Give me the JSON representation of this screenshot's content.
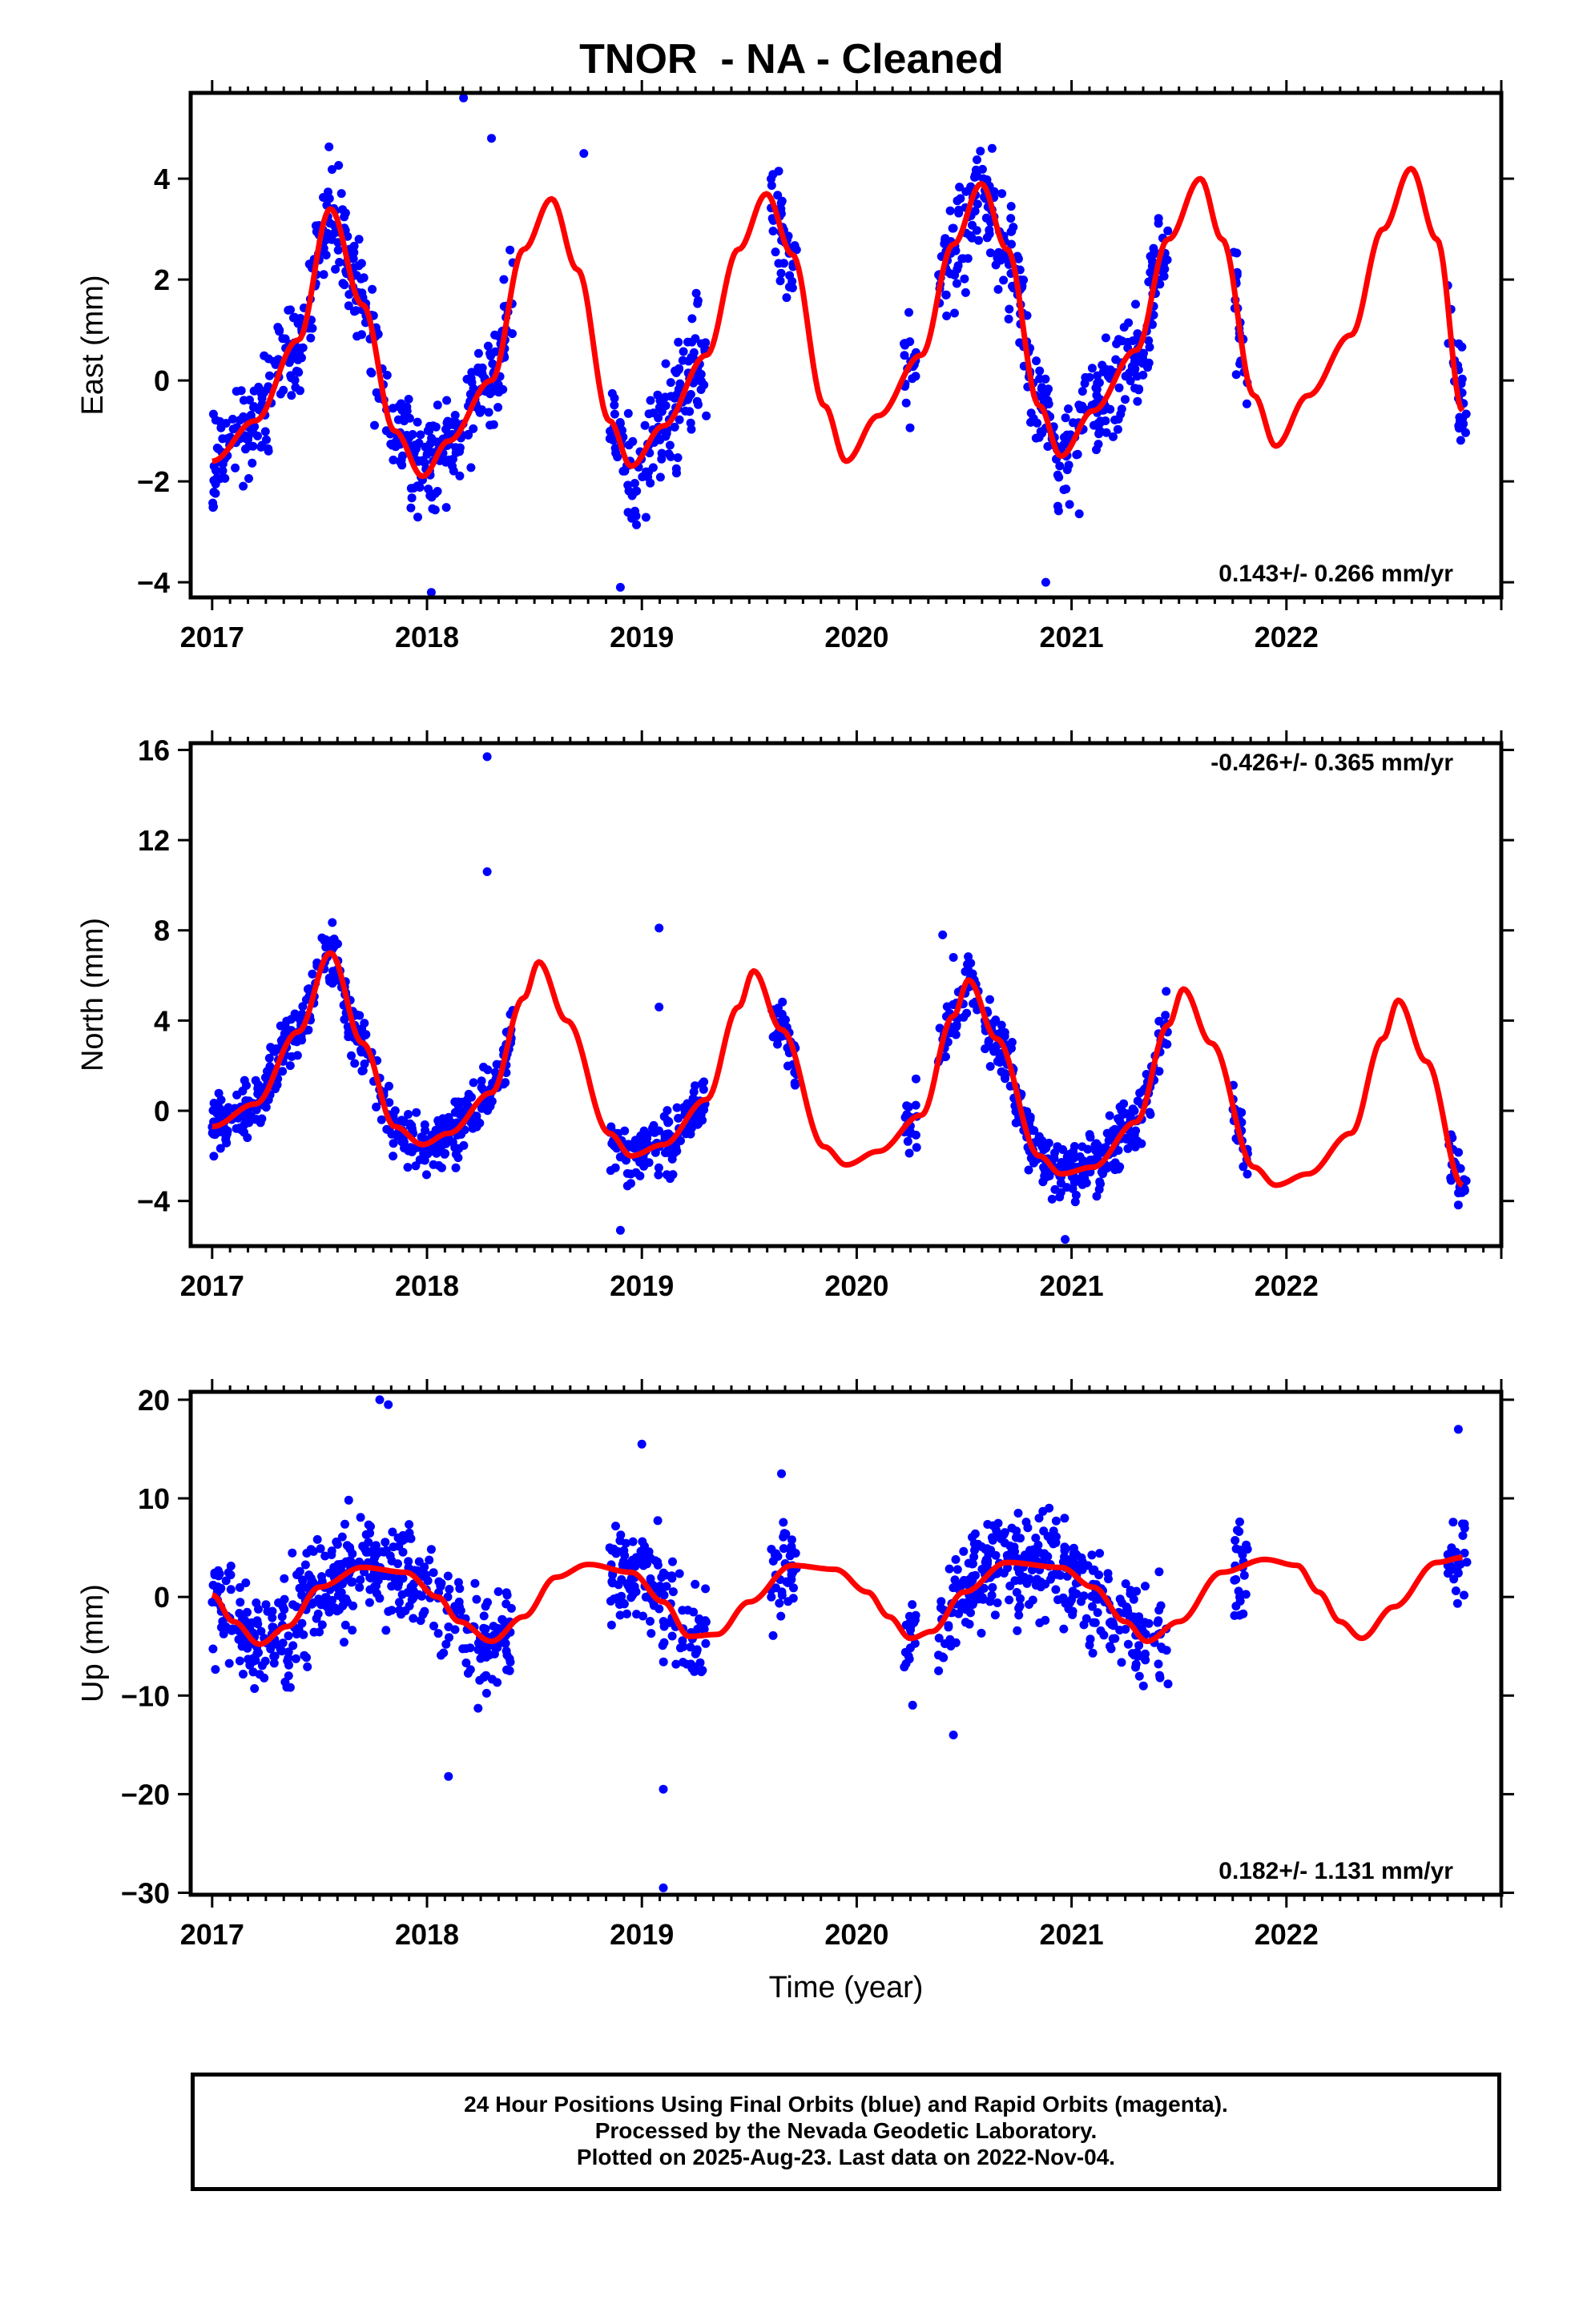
{
  "title": "TNOR  - NA - Cleaned",
  "colors": {
    "points": "#0000ff",
    "model": "#ff0000",
    "frame": "#000000"
  },
  "x_axis_label": "Time (year)",
  "footer": {
    "line1": "24 Hour Positions Using Final Orbits (blue) and Rapid Orbits (magenta).",
    "line2": "Processed by the Nevada Geodetic Laboratory.",
    "line3": "Plotted on 2025-Aug-23. Last data on 2022-Nov-04."
  },
  "chart_data": [
    {
      "type": "scatter",
      "ylabel": "East (mm)",
      "rate_text": "0.143+/- 0.266 mm/yr",
      "rate_position": "bottom-right",
      "xlim": [
        2016.9,
        2023.0
      ],
      "ylim": [
        -4.3,
        5.7
      ],
      "xticks": [
        2017,
        2018,
        2019,
        2020,
        2021,
        2022
      ],
      "yticks": [
        -4,
        -2,
        0,
        2,
        4
      ],
      "data_segments": [
        [
          2017.0,
          2018.4
        ],
        [
          2018.85,
          2019.3
        ],
        [
          2019.6,
          2019.72
        ],
        [
          2020.22,
          2020.28
        ],
        [
          2020.38,
          2021.45
        ],
        [
          2021.75,
          2021.82
        ],
        [
          2022.75,
          2022.84
        ]
      ],
      "model": {
        "x": [
          2017.0,
          2017.2,
          2017.4,
          2017.55,
          2017.7,
          2017.85,
          2017.98,
          2018.1,
          2018.3,
          2018.45,
          2018.58,
          2018.7,
          2018.85,
          2018.95,
          2019.1,
          2019.3,
          2019.45,
          2019.58,
          2019.7,
          2019.85,
          2019.95,
          2020.1,
          2020.3,
          2020.45,
          2020.58,
          2020.7,
          2020.85,
          2020.95,
          2021.1,
          2021.3,
          2021.45,
          2021.6,
          2021.7,
          2021.85,
          2021.95,
          2022.1,
          2022.3,
          2022.45,
          2022.58,
          2022.7,
          2022.82
        ],
        "y": [
          -1.6,
          -0.8,
          0.8,
          3.4,
          1.5,
          -1.0,
          -1.9,
          -1.2,
          0.0,
          2.6,
          3.6,
          2.2,
          -0.8,
          -1.7,
          -0.9,
          0.5,
          2.6,
          3.7,
          2.5,
          -0.5,
          -1.6,
          -0.7,
          0.5,
          2.7,
          3.9,
          2.6,
          -0.5,
          -1.5,
          -0.6,
          0.6,
          2.8,
          4.0,
          2.8,
          -0.3,
          -1.3,
          -0.3,
          0.9,
          3.0,
          4.2,
          2.8,
          -0.6
        ]
      },
      "outliers": [
        [
          2018.17,
          5.6
        ],
        [
          2018.3,
          4.8
        ],
        [
          2018.73,
          4.5
        ],
        [
          2020.63,
          4.6
        ],
        [
          2020.88,
          -4.0
        ],
        [
          2018.02,
          -4.2
        ],
        [
          2018.9,
          -4.1
        ]
      ]
    },
    {
      "type": "scatter",
      "ylabel": "North (mm)",
      "rate_text": "-0.426+/- 0.365 mm/yr",
      "rate_position": "top-right",
      "xlim": [
        2016.9,
        2023.0
      ],
      "ylim": [
        -6.0,
        16.3
      ],
      "xticks": [
        2017,
        2018,
        2019,
        2020,
        2021,
        2022
      ],
      "yticks": [
        -4,
        0,
        4,
        8,
        12,
        16
      ],
      "data_segments": [
        [
          2017.0,
          2018.4
        ],
        [
          2018.85,
          2019.3
        ],
        [
          2019.6,
          2019.72
        ],
        [
          2020.22,
          2020.28
        ],
        [
          2020.38,
          2021.45
        ],
        [
          2021.75,
          2021.82
        ],
        [
          2022.75,
          2022.84
        ]
      ],
      "model": {
        "x": [
          2017.0,
          2017.2,
          2017.4,
          2017.55,
          2017.7,
          2017.85,
          2017.98,
          2018.1,
          2018.3,
          2018.45,
          2018.52,
          2018.65,
          2018.85,
          2018.95,
          2019.1,
          2019.3,
          2019.45,
          2019.52,
          2019.65,
          2019.85,
          2019.95,
          2020.1,
          2020.3,
          2020.45,
          2020.52,
          2020.65,
          2020.85,
          2020.95,
          2021.1,
          2021.3,
          2021.45,
          2021.52,
          2021.65,
          2021.85,
          2021.95,
          2022.1,
          2022.3,
          2022.45,
          2022.52,
          2022.65,
          2022.82
        ],
        "y": [
          -0.7,
          0.3,
          3.5,
          7.0,
          3.0,
          -0.7,
          -1.5,
          -1.0,
          0.8,
          5.0,
          6.6,
          4.0,
          -1.0,
          -2.0,
          -1.5,
          0.5,
          4.6,
          6.2,
          3.6,
          -1.6,
          -2.4,
          -1.8,
          -0.2,
          4.2,
          5.8,
          3.2,
          -2.0,
          -2.8,
          -2.5,
          -0.5,
          3.8,
          5.4,
          3.0,
          -2.5,
          -3.3,
          -2.8,
          -1.0,
          3.2,
          4.9,
          2.2,
          -3.3
        ]
      },
      "outliers": [
        [
          2018.28,
          15.7
        ],
        [
          2018.28,
          10.6
        ],
        [
          2019.08,
          8.1
        ],
        [
          2019.08,
          4.6
        ],
        [
          2020.4,
          7.8
        ],
        [
          2020.45,
          6.8
        ],
        [
          2018.9,
          -5.3
        ],
        [
          2020.97,
          -5.7
        ]
      ]
    },
    {
      "type": "scatter",
      "ylabel": "Up (mm)",
      "rate_text": "0.182+/- 1.131 mm/yr",
      "rate_position": "bottom-right",
      "xlim": [
        2016.9,
        2023.0
      ],
      "ylim": [
        -30.2,
        20.8
      ],
      "xticks": [
        2017,
        2018,
        2019,
        2020,
        2021,
        2022
      ],
      "yticks": [
        -30,
        -20,
        -10,
        0,
        10,
        20
      ],
      "data_segments": [
        [
          2017.0,
          2018.4
        ],
        [
          2018.85,
          2019.3
        ],
        [
          2019.6,
          2019.72
        ],
        [
          2020.22,
          2020.28
        ],
        [
          2020.38,
          2021.45
        ],
        [
          2021.75,
          2021.82
        ],
        [
          2022.75,
          2022.84
        ]
      ],
      "model": {
        "x": [
          2017.0,
          2017.1,
          2017.22,
          2017.35,
          2017.5,
          2017.7,
          2017.9,
          2018.05,
          2018.15,
          2018.3,
          2018.45,
          2018.6,
          2018.75,
          2018.95,
          2019.1,
          2019.22,
          2019.35,
          2019.5,
          2019.7,
          2019.9,
          2020.05,
          2020.15,
          2020.25,
          2020.35,
          2020.5,
          2020.7,
          2020.95,
          2021.1,
          2021.25,
          2021.35,
          2021.5,
          2021.7,
          2021.9,
          2022.05,
          2022.15,
          2022.25,
          2022.35,
          2022.5,
          2022.7,
          2022.82
        ],
        "y": [
          0.2,
          -2.5,
          -4.8,
          -3.0,
          1.0,
          3.0,
          2.5,
          0.0,
          -2.5,
          -4.5,
          -2.0,
          2.0,
          3.3,
          2.5,
          -0.5,
          -4.0,
          -3.8,
          -0.5,
          3.2,
          2.8,
          0.5,
          -2.0,
          -4.2,
          -3.5,
          0.5,
          3.5,
          3.0,
          1.0,
          -2.5,
          -4.5,
          -2.5,
          2.5,
          3.8,
          3.2,
          0.5,
          -2.5,
          -4.2,
          -1.0,
          3.5,
          4.0
        ]
      },
      "outliers": [
        [
          2017.78,
          20.0
        ],
        [
          2017.82,
          19.5
        ],
        [
          2019.0,
          15.5
        ],
        [
          2019.1,
          -29.5
        ],
        [
          2019.1,
          -19.5
        ],
        [
          2018.1,
          -18.2
        ],
        [
          2022.8,
          17.0
        ],
        [
          2020.45,
          -14.0
        ],
        [
          2019.65,
          12.5
        ]
      ]
    }
  ]
}
